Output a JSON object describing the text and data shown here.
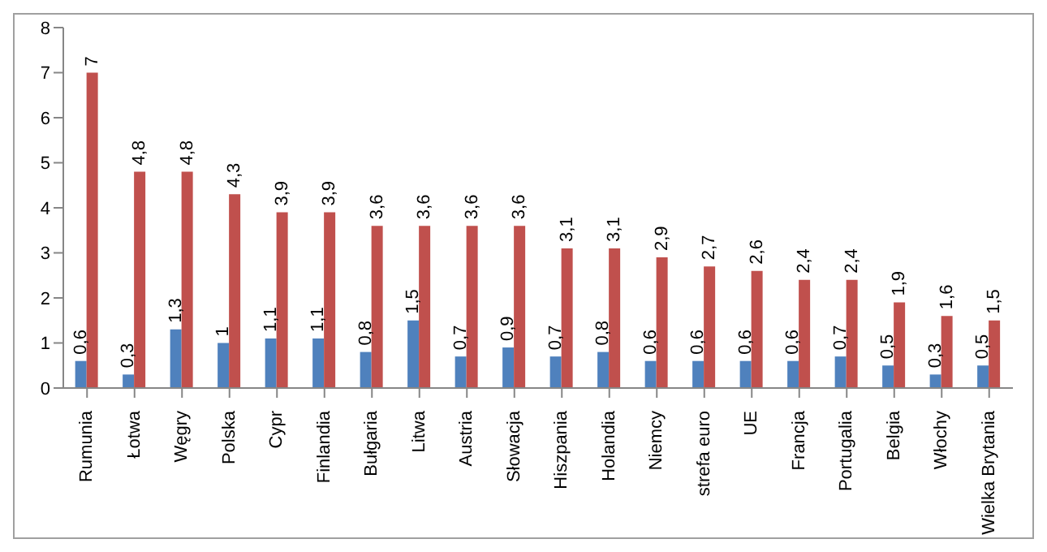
{
  "chart_data": {
    "type": "bar",
    "categories": [
      "Rumunia",
      "Łotwa",
      "Węgry",
      "Polska",
      "Cypr",
      "Finlandia",
      "Bułgaria",
      "Litwa",
      "Austria",
      "Słowacja",
      "Hiszpania",
      "Holandia",
      "Niemcy",
      "strefa euro",
      "UE",
      "Francja",
      "Portugalia",
      "Belgia",
      "Włochy",
      "Wielka Brytania"
    ],
    "series": [
      {
        "color": "#4f81bd",
        "values": [
          0.6,
          0.3,
          1.3,
          1,
          1.1,
          1.1,
          0.8,
          1.5,
          0.7,
          0.9,
          0.7,
          0.8,
          0.6,
          0.6,
          0.6,
          0.6,
          0.7,
          0.5,
          0.3,
          0.5
        ],
        "value_labels": [
          "0,6",
          "0,3",
          "1,3",
          "1",
          "1,1",
          "1,1",
          "0,8",
          "1,5",
          "0,7",
          "0,9",
          "0,7",
          "0,8",
          "0,6",
          "0,6",
          "0,6",
          "0,6",
          "0,7",
          "0,5",
          "0,3",
          "0,5"
        ]
      },
      {
        "color": "#c0504d",
        "values": [
          7,
          4.8,
          4.8,
          4.3,
          3.9,
          3.9,
          3.6,
          3.6,
          3.6,
          3.6,
          3.1,
          3.1,
          2.9,
          2.7,
          2.6,
          2.4,
          2.4,
          1.9,
          1.6,
          1.5
        ],
        "value_labels": [
          "7",
          "4,8",
          "4,8",
          "4,3",
          "3,9",
          "3,9",
          "3,6",
          "3,6",
          "3,6",
          "3,6",
          "3,1",
          "3,1",
          "2,9",
          "2,7",
          "2,6",
          "2,4",
          "2,4",
          "1,9",
          "1,6",
          "1,5"
        ]
      }
    ],
    "ylim": [
      0,
      8
    ],
    "yticks": [
      0,
      1,
      2,
      3,
      4,
      5,
      6,
      7,
      8
    ]
  }
}
